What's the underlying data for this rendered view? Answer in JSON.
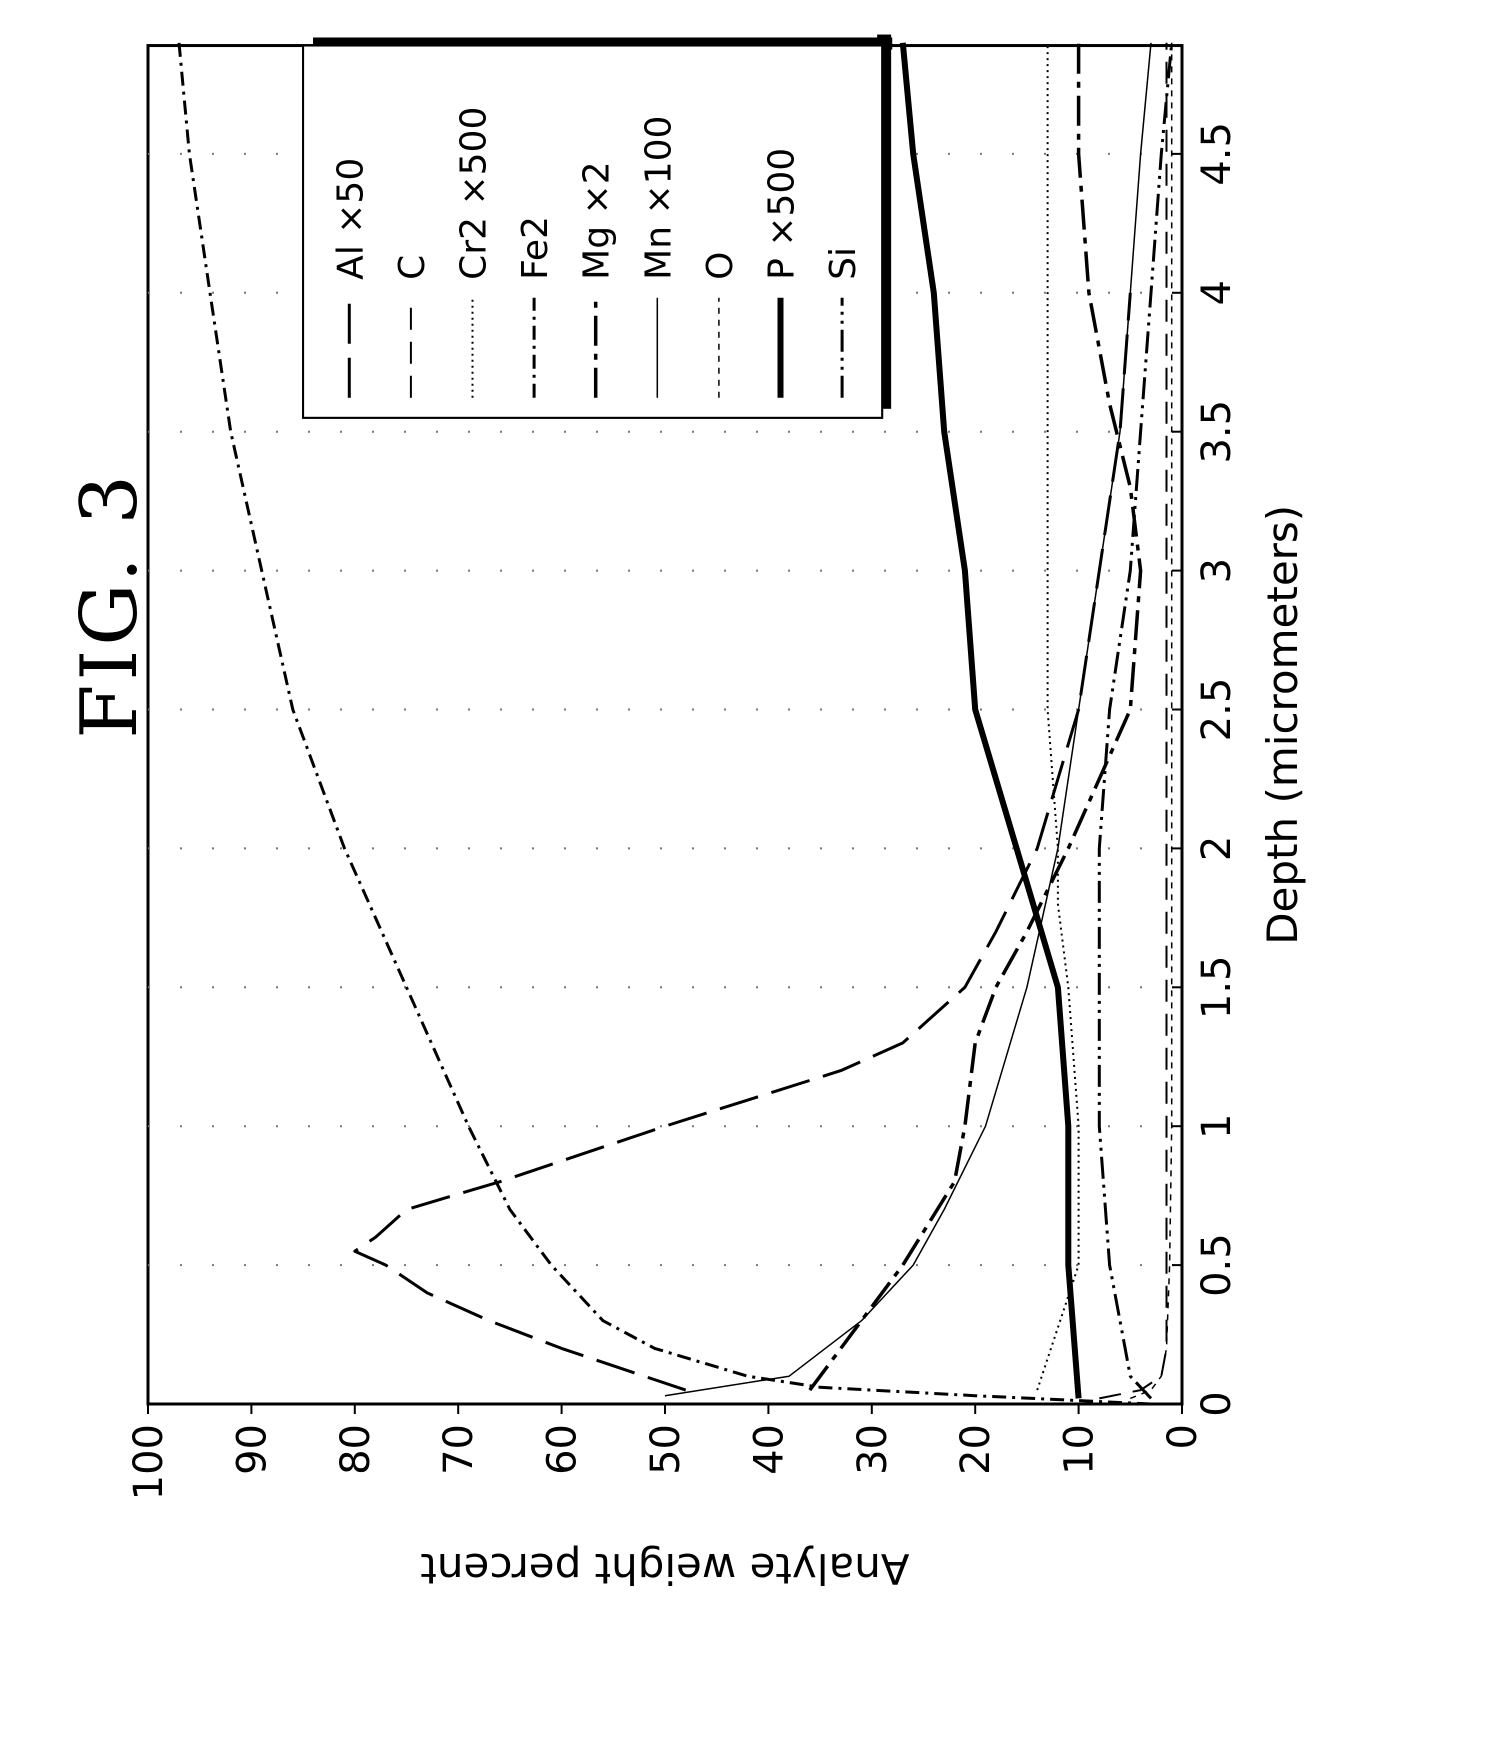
{
  "figure": {
    "title": "FIG. 3"
  },
  "chart_data": {
    "type": "line",
    "xlabel": "Depth (micrometers)",
    "ylabel": "Analyte weight percent",
    "xlim": [
      0,
      5
    ],
    "ylim": [
      0,
      100
    ],
    "xticks": [
      "0",
      "0.5",
      "1",
      "1.5",
      "2",
      "2.5",
      "3",
      "3.5",
      "4",
      "4.5"
    ],
    "yticks": [
      "0",
      "10",
      "20",
      "30",
      "40",
      "50",
      "60",
      "70",
      "80",
      "90",
      "100"
    ],
    "grid": "dotted",
    "legend_position": "top-right",
    "series": [
      {
        "name": "Al ×50",
        "style": "long-dash",
        "x": [
          0.05,
          0.1,
          0.2,
          0.3,
          0.4,
          0.5,
          0.55,
          0.6,
          0.7,
          0.8,
          1.0,
          1.2,
          1.3,
          1.5,
          1.7,
          2.0,
          2.5,
          3.0,
          3.5,
          4.0
        ],
        "y": [
          48,
          52,
          60,
          67,
          73,
          77,
          80,
          78,
          75,
          66,
          50,
          33,
          27,
          21,
          18,
          14,
          10,
          8,
          6,
          5
        ]
      },
      {
        "name": "C",
        "style": "dashed",
        "x": [
          0.02,
          0.05,
          0.1,
          0.2,
          0.3,
          0.5,
          1,
          2,
          3,
          4,
          4.9
        ],
        "y": [
          8,
          4,
          2,
          1.5,
          1.5,
          1.5,
          1.5,
          1.5,
          1.5,
          1.5,
          1.5
        ]
      },
      {
        "name": "Cr2 ×500",
        "style": "dotted",
        "x": [
          0.05,
          0.5,
          1.0,
          1.5,
          1.8,
          2.0,
          2.5,
          3.0,
          3.5,
          4.0,
          4.5,
          4.9
        ],
        "y": [
          14,
          10,
          10,
          11,
          12,
          12,
          13,
          13,
          13,
          13,
          13,
          13
        ]
      },
      {
        "name": "Fe2",
        "style": "dash-dot",
        "x": [
          0.0,
          0.03,
          0.06,
          0.1,
          0.2,
          0.3,
          0.5,
          0.7,
          1.0,
          1.5,
          2.0,
          2.5,
          3.0,
          3.5,
          4.0,
          4.5,
          4.9
        ],
        "y": [
          3,
          20,
          35,
          42,
          51,
          56,
          61,
          65,
          69,
          75,
          81,
          86,
          89,
          92,
          94,
          96,
          97
        ]
      },
      {
        "name": "Mg ×2",
        "style": "dash-dot-long",
        "x": [
          0.05,
          0.2,
          0.5,
          0.8,
          1.0,
          1.3,
          1.5,
          1.7,
          2.0,
          2.5,
          3.0,
          3.3,
          3.6,
          4.0,
          4.5,
          4.9
        ],
        "y": [
          36,
          33,
          27,
          22,
          21,
          20,
          18,
          15,
          11,
          5,
          4,
          5,
          7,
          9,
          10,
          10
        ]
      },
      {
        "name": "Mn ×100",
        "style": "thin-solid",
        "x": [
          0.03,
          0.1,
          0.3,
          0.5,
          0.7,
          1.0,
          1.5,
          2.0,
          2.5,
          3.0,
          3.5,
          4.0,
          4.5,
          4.9
        ],
        "y": [
          50,
          38,
          31,
          26,
          23,
          19,
          15,
          12,
          10,
          8,
          6,
          5,
          4,
          3
        ]
      },
      {
        "name": "O",
        "style": "fine-dash",
        "x": [
          0.02,
          0.05,
          0.1,
          0.2,
          0.5,
          1.0,
          1.5,
          2.0,
          2.5,
          3.0,
          3.5,
          4.0,
          4.5,
          4.9
        ],
        "y": [
          5,
          3,
          2,
          1.5,
          1.2,
          1,
          1,
          1,
          1,
          1,
          1,
          1,
          1,
          1
        ]
      },
      {
        "name": "P ×500",
        "style": "thick-solid",
        "x": [
          0.02,
          0.5,
          1.0,
          1.5,
          2.0,
          2.5,
          3.0,
          3.5,
          4.0,
          4.5,
          4.9
        ],
        "y": [
          10,
          11,
          11,
          12,
          16,
          20,
          21,
          23,
          24,
          26,
          27
        ]
      },
      {
        "name": "Si",
        "style": "dash-dot-dot",
        "x": [
          0.02,
          0.1,
          0.3,
          0.5,
          1.0,
          1.5,
          2.0,
          2.5,
          3.0,
          3.5,
          4.0,
          4.5,
          4.9
        ],
        "y": [
          3,
          5,
          6,
          7,
          8,
          8,
          8,
          7,
          5,
          4,
          3,
          2,
          1
        ]
      }
    ]
  }
}
